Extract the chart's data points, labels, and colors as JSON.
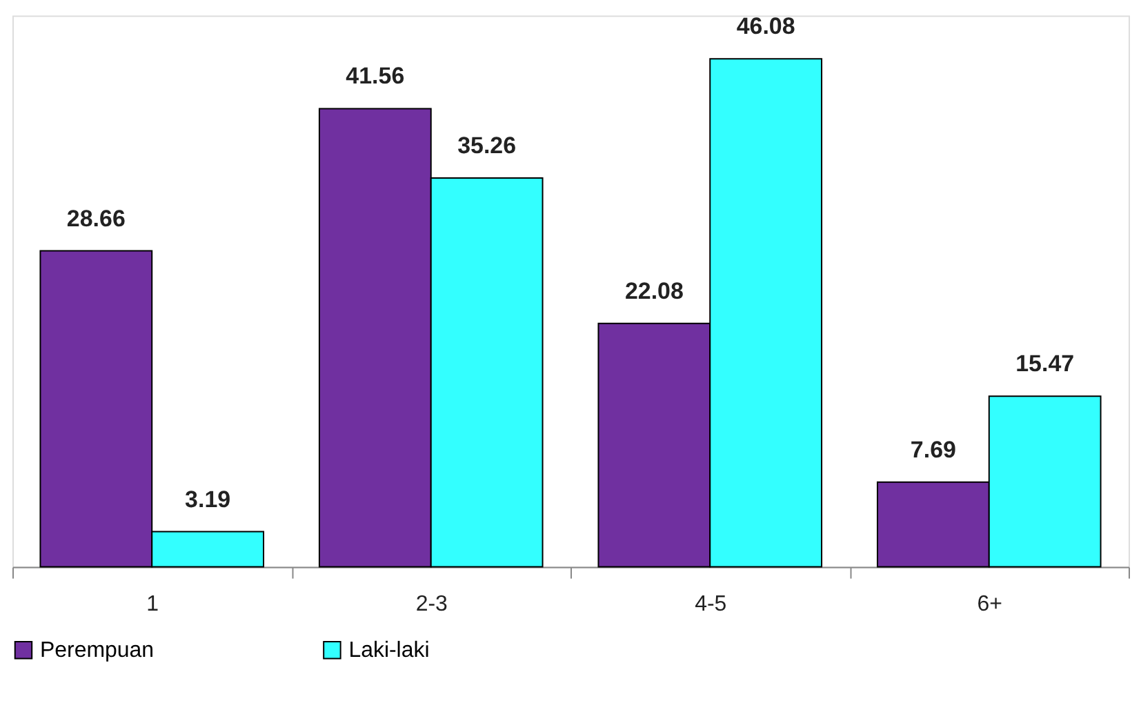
{
  "chart_data": {
    "type": "bar",
    "categories": [
      "1",
      "2-3",
      "4-5",
      "6+"
    ],
    "series": [
      {
        "name": "Perempuan",
        "color": "#7030a0",
        "values": [
          28.66,
          41.56,
          22.08,
          7.69
        ]
      },
      {
        "name": "Laki-laki",
        "color": "#33ffff",
        "values": [
          3.19,
          35.26,
          46.08,
          15.47
        ]
      }
    ],
    "data_labels": true,
    "legend": "bottom",
    "grid": false
  }
}
